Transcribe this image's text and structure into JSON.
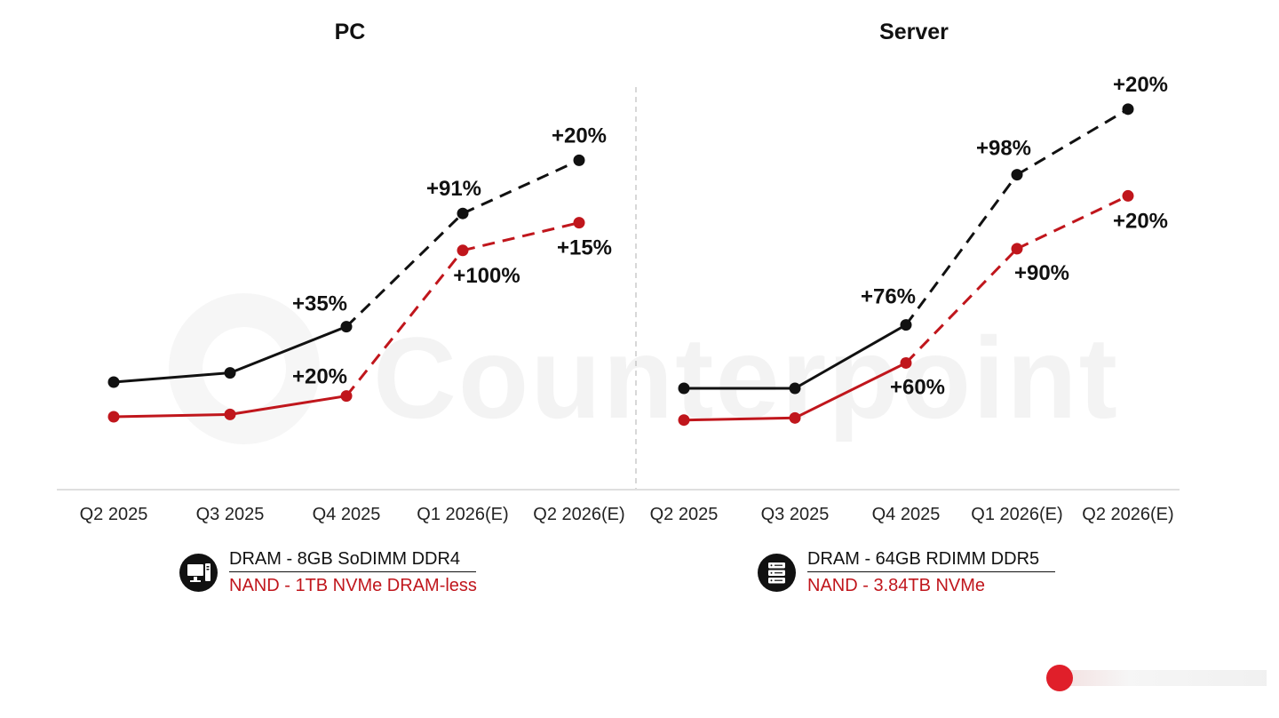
{
  "chart_data": [
    {
      "type": "line",
      "title": "PC",
      "categories": [
        "Q2 2025",
        "Q3 2025",
        "Q4 2025",
        "Q1 2026(E)",
        "Q2 2026(E)"
      ],
      "estimate_from_index": 2,
      "series": [
        {
          "name": "DRAM - 8GB SoDIMM DDR4",
          "color": "#111111",
          "values": [
            100,
            104,
            124,
            173,
            196
          ],
          "labels": [
            null,
            null,
            "+35%",
            "+91%",
            "+20%"
          ]
        },
        {
          "name": "NAND - 1TB NVMe DRAM-less",
          "color": "#c0161c",
          "values": [
            85,
            86,
            94,
            157,
            169
          ],
          "labels": [
            null,
            null,
            "+20%",
            "+100%",
            "+15%"
          ]
        }
      ]
    },
    {
      "type": "line",
      "title": "Server",
      "categories": [
        "Q2 2025",
        "Q3 2025",
        "Q4 2025",
        "Q1 2026(E)",
        "Q2 2026(E)"
      ],
      "estimate_from_index": 2,
      "series": [
        {
          "name": "DRAM - 64GB RDIMM DDR5",
          "color": "#111111",
          "values": [
            100,
            100,
            130,
            201,
            232
          ],
          "labels": [
            null,
            null,
            "+76%",
            "+98%",
            "+20%"
          ]
        },
        {
          "name": "NAND - 3.84TB NVMe",
          "color": "#c0161c",
          "values": [
            85,
            86,
            112,
            166,
            191
          ],
          "labels": [
            null,
            null,
            "+60%",
            "+90%",
            "+20%"
          ]
        }
      ]
    }
  ],
  "legends": [
    {
      "icon": "desktop-computer-icon",
      "dram": "DRAM - 8GB SoDIMM DDR4",
      "nand": "NAND - 1TB NVMe DRAM-less"
    },
    {
      "icon": "server-rack-icon",
      "dram": "DRAM - 64GB RDIMM DDR5",
      "nand": "NAND - 3.84TB NVMe"
    }
  ],
  "watermark": "Counterpoint"
}
